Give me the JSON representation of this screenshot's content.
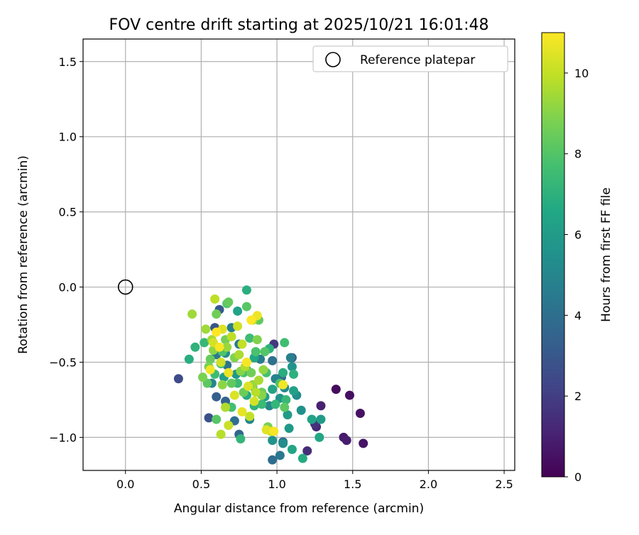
{
  "chart_data": {
    "type": "scatter",
    "title": "FOV centre drift starting at 2025/10/21 16:01:48",
    "xlabel": "Angular distance from reference (arcmin)",
    "ylabel": "Rotation from reference (arcmin)",
    "xlim": [
      -0.28,
      2.57
    ],
    "ylim": [
      -1.22,
      1.65
    ],
    "xticks": [
      0.0,
      0.5,
      1.0,
      1.5,
      2.0,
      2.5
    ],
    "xtick_labels": [
      "0.0",
      "0.5",
      "1.0",
      "1.5",
      "2.0",
      "2.5"
    ],
    "yticks": [
      -1.0,
      -0.5,
      0.0,
      0.5,
      1.0,
      1.5
    ],
    "ytick_labels": [
      "−1.0",
      "−0.5",
      "0.0",
      "0.5",
      "1.0",
      "1.5"
    ],
    "grid": true,
    "legend": {
      "placement": "top-right",
      "entries": [
        "Reference platepar"
      ]
    },
    "reference_point": {
      "x": 0.0,
      "y": 0.0
    },
    "colorbar": {
      "label": "Hours from first FF file",
      "range": [
        0,
        11
      ],
      "ticks": [
        0,
        2,
        4,
        6,
        8,
        10
      ],
      "tick_labels": [
        "0",
        "2",
        "4",
        "6",
        "8",
        "10"
      ],
      "colormap": "viridis"
    },
    "series": [
      {
        "name": "FOV centre",
        "points": [
          [
            1.39,
            -0.68,
            0.3
          ],
          [
            1.48,
            -0.72,
            0.4
          ],
          [
            1.55,
            -0.84,
            0.5
          ],
          [
            1.57,
            -1.04,
            0.6
          ],
          [
            1.44,
            -1.0,
            0.8
          ],
          [
            1.46,
            -1.02,
            0.9
          ],
          [
            1.29,
            -0.79,
            1.0
          ],
          [
            1.26,
            -0.93,
            1.2
          ],
          [
            1.2,
            -1.09,
            1.4
          ],
          [
            1.25,
            -0.91,
            1.6
          ],
          [
            0.98,
            -0.38,
            1.8
          ],
          [
            0.35,
            -0.61,
            2.5
          ],
          [
            0.55,
            -0.87,
            2.7
          ],
          [
            0.59,
            -0.27,
            2.8
          ],
          [
            0.62,
            -0.15,
            3.0
          ],
          [
            1.1,
            -0.47,
            3.2
          ],
          [
            0.6,
            -0.73,
            3.3
          ],
          [
            0.66,
            -0.76,
            3.5
          ],
          [
            0.75,
            -0.98,
            3.6
          ],
          [
            1.04,
            -1.03,
            3.7
          ],
          [
            1.03,
            -0.6,
            3.8
          ],
          [
            0.97,
            -1.15,
            3.9
          ],
          [
            0.72,
            -0.89,
            4.0
          ],
          [
            0.97,
            -0.49,
            4.1
          ],
          [
            0.67,
            -0.52,
            4.2
          ],
          [
            1.02,
            -1.12,
            4.4
          ],
          [
            0.6,
            -0.45,
            4.4
          ],
          [
            0.75,
            -0.38,
            4.5
          ],
          [
            0.89,
            -0.48,
            4.6
          ],
          [
            0.7,
            -0.27,
            4.7
          ],
          [
            1.09,
            -0.47,
            4.8
          ],
          [
            0.99,
            -0.61,
            4.9
          ],
          [
            0.82,
            -0.88,
            5.0
          ],
          [
            0.57,
            -0.64,
            5.0
          ],
          [
            0.95,
            -0.79,
            5.1
          ],
          [
            1.05,
            -0.67,
            5.2
          ],
          [
            0.8,
            -0.55,
            5.2
          ],
          [
            1.13,
            -0.72,
            5.3
          ],
          [
            1.04,
            -1.04,
            5.3
          ],
          [
            0.66,
            -0.44,
            5.4
          ],
          [
            1.16,
            -0.82,
            5.5
          ],
          [
            0.97,
            -1.02,
            5.6
          ],
          [
            1.02,
            -0.74,
            5.6
          ],
          [
            1.1,
            -0.53,
            5.7
          ],
          [
            0.73,
            -0.58,
            5.8
          ],
          [
            1.08,
            -0.94,
            5.9
          ],
          [
            0.84,
            -0.66,
            5.9
          ],
          [
            1.29,
            -0.88,
            6.0
          ],
          [
            1.07,
            -0.85,
            6.0
          ],
          [
            0.92,
            -0.73,
            6.1
          ],
          [
            0.65,
            -0.6,
            6.2
          ],
          [
            1.11,
            -0.69,
            6.2
          ],
          [
            0.74,
            -0.16,
            6.3
          ],
          [
            1.23,
            -0.88,
            6.3
          ],
          [
            0.97,
            -0.68,
            6.4
          ],
          [
            1.1,
            -1.08,
            6.5
          ],
          [
            1.28,
            -1.0,
            6.5
          ],
          [
            0.85,
            -0.47,
            6.6
          ],
          [
            0.8,
            -0.72,
            6.7
          ],
          [
            1.17,
            -1.14,
            6.7
          ],
          [
            0.42,
            -0.48,
            6.8
          ],
          [
            1.04,
            -0.57,
            6.8
          ],
          [
            0.8,
            -0.02,
            6.9
          ],
          [
            0.95,
            -0.41,
            7.0
          ],
          [
            1.11,
            -0.58,
            7.0
          ],
          [
            0.85,
            -0.79,
            7.1
          ],
          [
            0.46,
            -0.4,
            7.1
          ],
          [
            0.76,
            -1.01,
            7.2
          ],
          [
            0.99,
            -0.78,
            7.2
          ],
          [
            0.52,
            -0.37,
            7.3
          ],
          [
            1.06,
            -0.75,
            7.3
          ],
          [
            0.74,
            -0.64,
            7.4
          ],
          [
            0.9,
            -0.78,
            7.4
          ],
          [
            0.59,
            -0.58,
            7.5
          ],
          [
            0.82,
            -0.34,
            7.5
          ],
          [
            1.05,
            -0.37,
            7.6
          ],
          [
            0.63,
            -0.51,
            7.6
          ],
          [
            0.93,
            -0.57,
            7.7
          ],
          [
            0.7,
            -0.8,
            7.7
          ],
          [
            0.86,
            -0.43,
            7.8
          ],
          [
            0.78,
            -0.57,
            7.8
          ],
          [
            1.02,
            -0.64,
            7.9
          ],
          [
            0.64,
            -0.43,
            7.9
          ],
          [
            0.92,
            -0.43,
            8.0
          ],
          [
            0.67,
            -0.11,
            8.0
          ],
          [
            0.8,
            -0.13,
            8.1
          ],
          [
            0.6,
            -0.88,
            8.1
          ],
          [
            0.54,
            -0.64,
            8.2
          ],
          [
            1.05,
            -0.8,
            8.2
          ],
          [
            0.88,
            -0.22,
            8.3
          ],
          [
            0.7,
            -0.64,
            8.3
          ],
          [
            0.56,
            -0.48,
            8.4
          ],
          [
            0.68,
            -0.1,
            8.4
          ],
          [
            0.9,
            -0.7,
            8.5
          ],
          [
            0.78,
            -0.7,
            8.5
          ],
          [
            0.6,
            -0.18,
            8.6
          ],
          [
            0.83,
            -0.57,
            8.6
          ],
          [
            0.66,
            -0.35,
            8.7
          ],
          [
            0.94,
            -0.93,
            8.7
          ],
          [
            0.51,
            -0.6,
            8.8
          ],
          [
            0.55,
            -0.53,
            8.8
          ],
          [
            0.87,
            -0.35,
            8.9
          ],
          [
            0.72,
            -0.47,
            8.9
          ],
          [
            0.76,
            -0.56,
            9.0
          ],
          [
            0.9,
            -0.72,
            9.0
          ],
          [
            0.58,
            -0.42,
            9.1
          ],
          [
            0.64,
            -0.65,
            9.1
          ],
          [
            0.91,
            -0.55,
            9.2
          ],
          [
            0.84,
            -0.65,
            9.3
          ],
          [
            0.67,
            -0.4,
            9.3
          ],
          [
            0.53,
            -0.28,
            9.4
          ],
          [
            0.44,
            -0.18,
            9.4
          ],
          [
            0.84,
            -0.22,
            9.5
          ],
          [
            0.57,
            -0.35,
            9.5
          ],
          [
            0.75,
            -0.45,
            9.6
          ],
          [
            0.88,
            -0.62,
            9.6
          ],
          [
            0.66,
            -0.8,
            9.7
          ],
          [
            0.79,
            -0.53,
            9.7
          ],
          [
            0.63,
            -0.98,
            9.8
          ],
          [
            0.86,
            -0.7,
            9.8
          ],
          [
            0.59,
            -0.08,
            9.9
          ],
          [
            0.7,
            -0.33,
            9.9
          ],
          [
            0.77,
            -0.38,
            10.0
          ],
          [
            0.82,
            -0.86,
            10.0
          ],
          [
            0.68,
            -0.92,
            10.1
          ],
          [
            0.96,
            -0.96,
            10.1
          ],
          [
            0.63,
            -0.5,
            10.2
          ],
          [
            0.74,
            -0.26,
            10.2
          ],
          [
            0.85,
            -0.76,
            10.3
          ],
          [
            0.58,
            -0.37,
            10.3
          ],
          [
            0.72,
            -0.72,
            10.4
          ],
          [
            0.81,
            -0.66,
            10.4
          ],
          [
            0.93,
            -0.95,
            10.5
          ],
          [
            0.64,
            -0.28,
            10.5
          ],
          [
            0.77,
            -0.83,
            10.6
          ],
          [
            0.87,
            -0.19,
            10.7
          ],
          [
            0.68,
            -0.57,
            10.7
          ],
          [
            1.04,
            -0.65,
            10.8
          ],
          [
            0.56,
            -0.55,
            10.8
          ],
          [
            0.8,
            -0.5,
            10.9
          ],
          [
            0.62,
            -0.4,
            10.9
          ],
          [
            0.83,
            -0.22,
            11.0
          ],
          [
            0.6,
            -0.3,
            11.0
          ],
          [
            0.98,
            -0.96,
            10.9
          ]
        ]
      }
    ]
  }
}
